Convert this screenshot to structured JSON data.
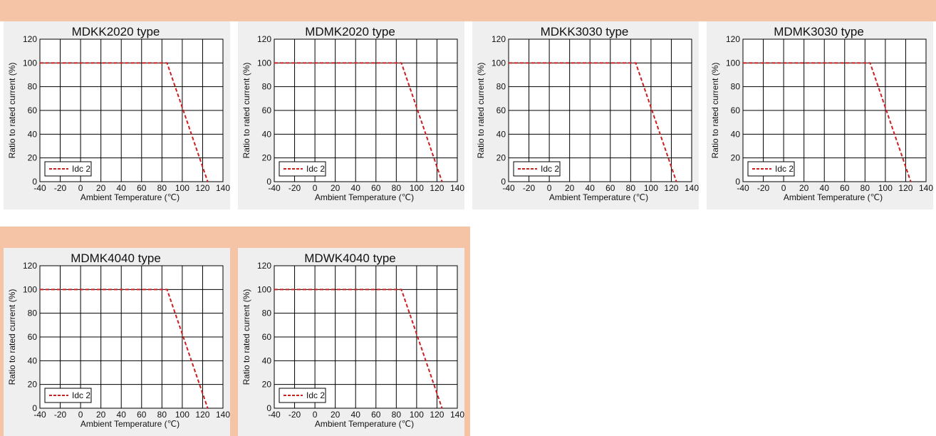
{
  "colors": {
    "band": "#f5c3a5",
    "panel": "#efefef",
    "curve": "#cc1f1f",
    "grid": "#000000"
  },
  "chart_data": [
    {
      "type": "line",
      "title": "MDKK2020  type",
      "xlabel": "Ambient Temperature (℃)",
      "ylabel": "Ratio to rated current (%)",
      "xlim": [
        -40,
        140
      ],
      "ylim": [
        0,
        120
      ],
      "xticks": [
        "-40",
        "-20",
        "0",
        "20",
        "40",
        "60",
        "80",
        "100",
        "120",
        "140"
      ],
      "yticks": [
        "0",
        "20",
        "40",
        "60",
        "80",
        "100",
        "120"
      ],
      "grid": true,
      "legend_position": "bottom-left",
      "series": [
        {
          "name": "Idc 2",
          "x": [
            -40,
            85,
            125
          ],
          "y": [
            100,
            100,
            0
          ]
        }
      ]
    },
    {
      "type": "line",
      "title": "MDMK2020  type",
      "xlabel": "Ambient Temperature (℃)",
      "ylabel": "Ratio to rated current (%)",
      "xlim": [
        -40,
        140
      ],
      "ylim": [
        0,
        120
      ],
      "xticks": [
        "-40",
        "-20",
        "0",
        "20",
        "40",
        "60",
        "80",
        "100",
        "120",
        "140"
      ],
      "yticks": [
        "0",
        "20",
        "40",
        "60",
        "80",
        "100",
        "120"
      ],
      "grid": true,
      "legend_position": "bottom-left",
      "series": [
        {
          "name": "Idc 2",
          "x": [
            -40,
            85,
            125
          ],
          "y": [
            100,
            100,
            0
          ]
        }
      ]
    },
    {
      "type": "line",
      "title": "MDKK3030  type",
      "xlabel": "Ambient Temperature (℃)",
      "ylabel": "Ratio to rated current (%)",
      "xlim": [
        -40,
        140
      ],
      "ylim": [
        0,
        120
      ],
      "xticks": [
        "-40",
        "-20",
        "0",
        "20",
        "40",
        "60",
        "80",
        "100",
        "120",
        "140"
      ],
      "yticks": [
        "0",
        "20",
        "40",
        "60",
        "80",
        "100",
        "120"
      ],
      "grid": true,
      "legend_position": "bottom-left",
      "series": [
        {
          "name": "Idc 2",
          "x": [
            -40,
            85,
            125
          ],
          "y": [
            100,
            100,
            0
          ]
        }
      ]
    },
    {
      "type": "line",
      "title": "MDMK3030  type",
      "xlabel": "Ambient Temperature (℃)",
      "ylabel": "Ratio to rated current (%)",
      "xlim": [
        -40,
        140
      ],
      "ylim": [
        0,
        120
      ],
      "xticks": [
        "-40",
        "-20",
        "0",
        "20",
        "40",
        "60",
        "80",
        "100",
        "120",
        "140"
      ],
      "yticks": [
        "0",
        "20",
        "40",
        "60",
        "80",
        "100",
        "120"
      ],
      "grid": true,
      "legend_position": "bottom-left",
      "series": [
        {
          "name": "Idc 2",
          "x": [
            -40,
            85,
            125
          ],
          "y": [
            100,
            100,
            0
          ]
        }
      ]
    },
    {
      "type": "line",
      "title": "MDMK4040  type",
      "xlabel": "Ambient Temperature (℃)",
      "ylabel": "Ratio to rated current (%)",
      "xlim": [
        -40,
        140
      ],
      "ylim": [
        0,
        120
      ],
      "xticks": [
        "-40",
        "-20",
        "0",
        "20",
        "40",
        "60",
        "80",
        "100",
        "120",
        "140"
      ],
      "yticks": [
        "0",
        "20",
        "40",
        "60",
        "80",
        "100",
        "120"
      ],
      "grid": true,
      "legend_position": "bottom-left",
      "series": [
        {
          "name": "Idc 2",
          "x": [
            -40,
            85,
            125
          ],
          "y": [
            100,
            100,
            0
          ]
        }
      ]
    },
    {
      "type": "line",
      "title": "MDWK4040  type",
      "xlabel": "Ambient Temperature (℃)",
      "ylabel": "Ratio to rated current (%)",
      "xlim": [
        -40,
        140
      ],
      "ylim": [
        0,
        120
      ],
      "xticks": [
        "-40",
        "-20",
        "0",
        "20",
        "40",
        "60",
        "80",
        "100",
        "120",
        "140"
      ],
      "yticks": [
        "0",
        "20",
        "40",
        "60",
        "80",
        "100",
        "120"
      ],
      "grid": true,
      "legend_position": "bottom-left",
      "series": [
        {
          "name": "Idc 2",
          "x": [
            -40,
            85,
            125
          ],
          "y": [
            100,
            100,
            0
          ]
        }
      ]
    }
  ]
}
